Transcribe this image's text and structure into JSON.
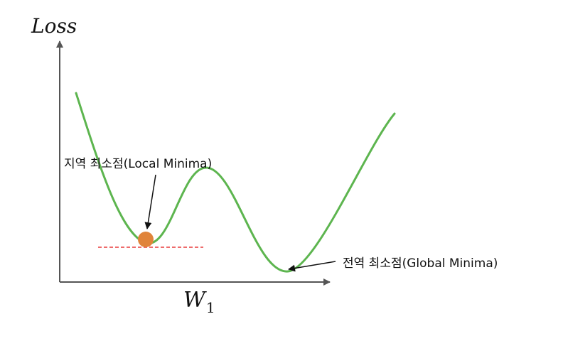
{
  "y_axis_title": "Loss",
  "x_axis_title": {
    "base": "W",
    "subscript": "1"
  },
  "annotations": {
    "local_minimum": "지역 최소점(Local Minima)",
    "global_minimum": "전역 최소점(Global Minima)"
  },
  "colors": {
    "curve": "#5db54f",
    "axis": "#555555",
    "dashed_line": "#e83b3b",
    "local_min_marker": "#e0843a",
    "text": "#111111"
  }
}
